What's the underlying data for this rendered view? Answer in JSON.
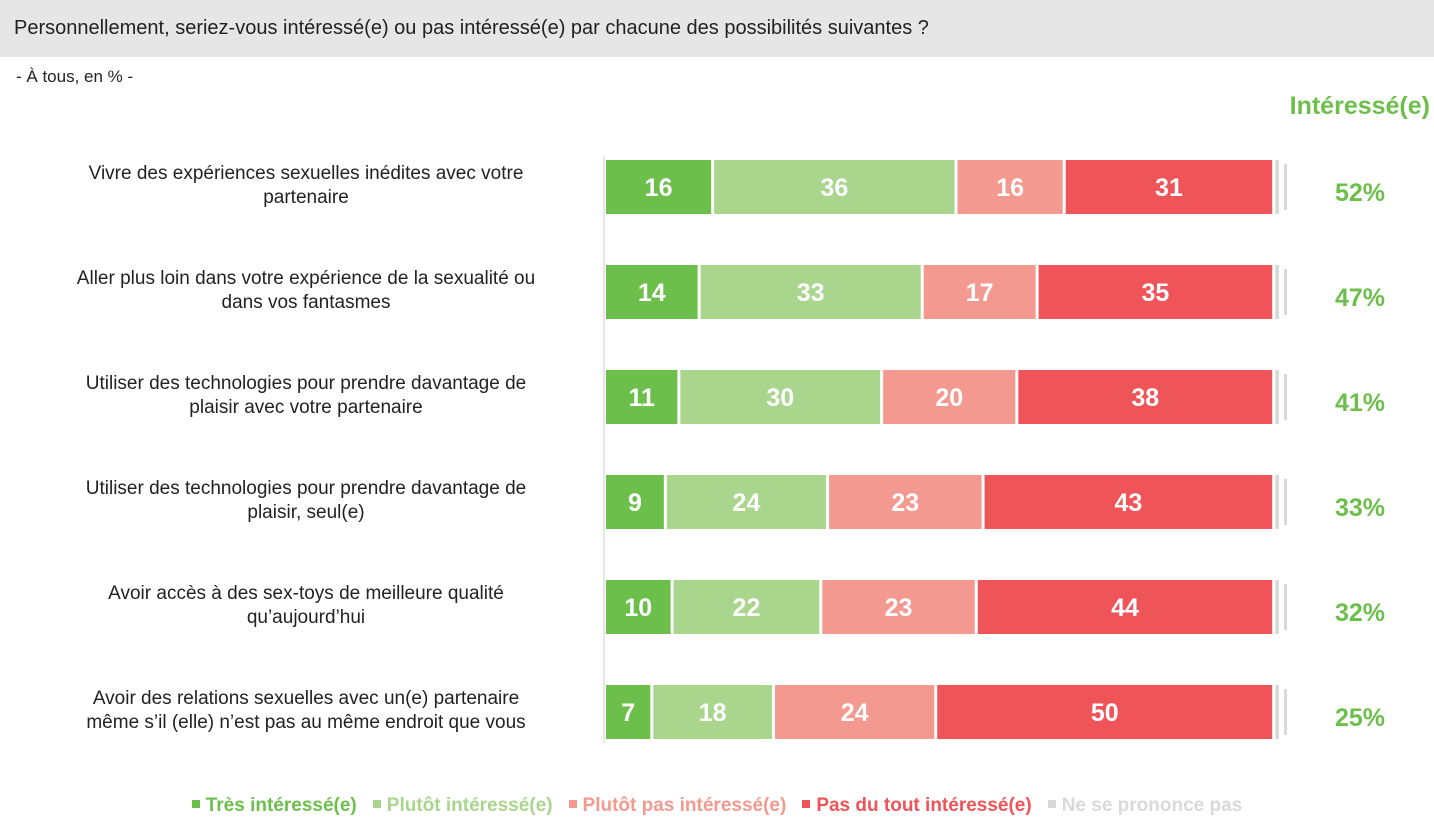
{
  "header": {
    "question": "Personnellement, seriez-vous intéressé(e) ou pas intéressé(e) par chacune des possibilités suivantes ?",
    "subtitle": "- À tous, en % -",
    "interest_label": "Intéressé(e)"
  },
  "colors": {
    "tres_interesse": "#6dbf4b",
    "plutot_interesse": "#a9d68c",
    "plutot_pas_interesse": "#f4998f",
    "pas_du_tout_interesse": "#ef5459",
    "ne_se_prononce_pas": "#d9d9d9",
    "interest_text": "#6dbf4b",
    "header_bg": "#e6e6e6"
  },
  "chart_data": {
    "type": "bar",
    "orientation": "horizontal",
    "stacked": true,
    "categories": [
      "Vivre des expériences sexuelles inédites avec votre partenaire",
      "Aller plus loin dans votre expérience de la sexualité ou dans vos fantasmes",
      "Utiliser des technologies pour prendre davantage de plaisir avec votre partenaire",
      "Utiliser des technologies pour prendre davantage de plaisir, seul(e)",
      "Avoir accès à des sex-toys de meilleure qualité qu’aujourd’hui",
      "Avoir des relations sexuelles avec un(e) partenaire même s’il (elle) n’est pas au même endroit que vous"
    ],
    "category_lines": [
      [
        "Vivre des expériences sexuelles inédites avec votre",
        "partenaire"
      ],
      [
        "Aller plus loin dans votre expérience de la sexualité ou",
        "dans vos fantasmes"
      ],
      [
        "Utiliser des technologies pour prendre davantage de",
        "plaisir avec votre partenaire"
      ],
      [
        "Utiliser des technologies pour prendre davantage de",
        "plaisir, seul(e)"
      ],
      [
        "Avoir accès à des sex-toys de meilleure qualité",
        "qu’aujourd’hui"
      ],
      [
        "Avoir des relations sexuelles avec un(e) partenaire",
        "même s’il (elle) n’est pas au même endroit que vous"
      ]
    ],
    "series": [
      {
        "name": "Très intéressé(e)",
        "color": "#6dbf4b",
        "values": [
          16,
          14,
          11,
          9,
          10,
          7
        ]
      },
      {
        "name": "Plutôt intéressé(e)",
        "color": "#a9d68c",
        "values": [
          36,
          33,
          30,
          24,
          22,
          18
        ]
      },
      {
        "name": "Plutôt pas intéressé(e)",
        "color": "#f4998f",
        "values": [
          16,
          17,
          20,
          23,
          23,
          24
        ]
      },
      {
        "name": "Pas du tout intéressé(e)",
        "color": "#ef5459",
        "values": [
          31,
          35,
          38,
          43,
          44,
          50
        ]
      },
      {
        "name": "Ne se prononce pas",
        "color": "#d9d9d9",
        "values": [
          1,
          1,
          1,
          1,
          1,
          1
        ]
      }
    ],
    "totals_interesse": [
      "52%",
      "47%",
      "41%",
      "33%",
      "32%",
      "25%"
    ],
    "unit": "%",
    "legend_position": "bottom"
  }
}
